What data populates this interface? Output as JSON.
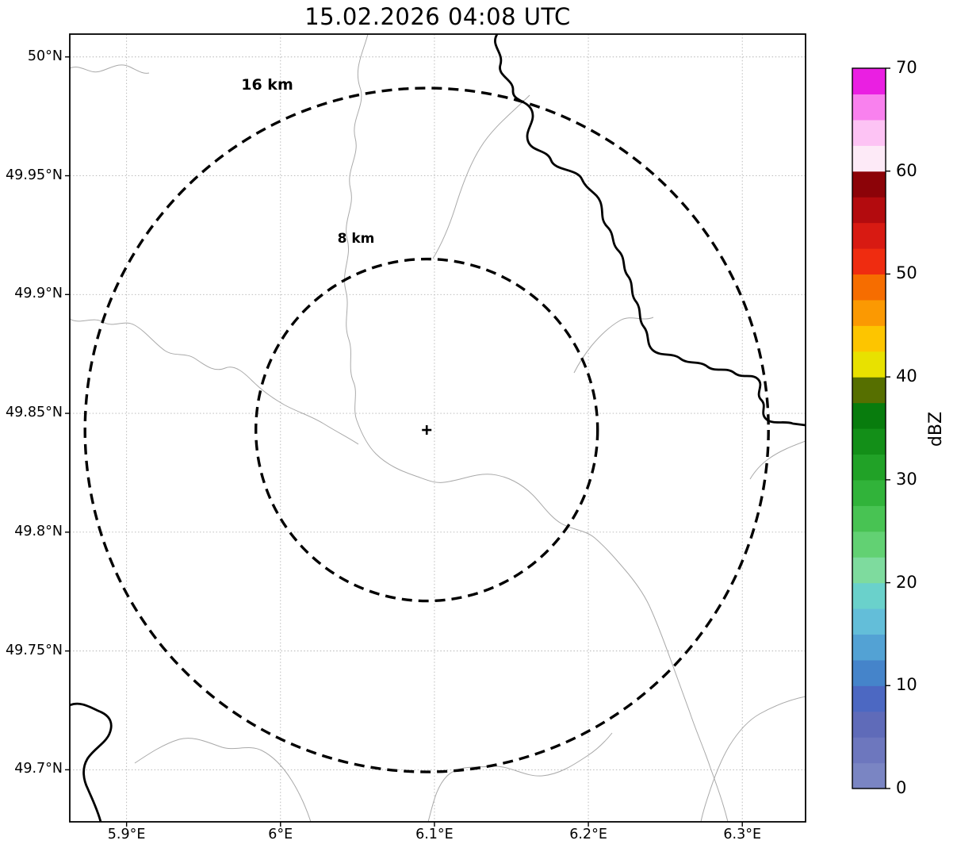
{
  "title": "15.02.2026 04:08 UTC",
  "colorbar": {
    "label": "dBZ",
    "min": 0,
    "max": 70,
    "ticks": [
      0,
      10,
      20,
      30,
      40,
      50,
      60,
      70
    ],
    "band_size_dbz": 2.5,
    "colors": [
      "#7a85c3",
      "#6d77be",
      "#5f6bb9",
      "#4c68c2",
      "#4584ca",
      "#53a2d4",
      "#63bed9",
      "#6ad1cb",
      "#7edb9e",
      "#62d173",
      "#48c353",
      "#31b33a",
      "#21a227",
      "#138f18",
      "#087c0d",
      "#56 6f00",
      "#e8e100",
      "#fdc500",
      "#fb9902",
      "#f66d00",
      "#ef2c10",
      "#d81a12",
      "#b30b0e",
      "#8c0308",
      "#fdeaf7",
      "#fdc3f4",
      "#f981ee",
      "#ea1fe2"
    ]
  },
  "axes": {
    "lon_range": [
      5.8631,
      6.3411
    ],
    "lat_range": [
      49.6781,
      50.0096
    ],
    "lon_ticks": [
      {
        "value": 5.9,
        "label": "5.9°E"
      },
      {
        "value": 6.0,
        "label": "6°E"
      },
      {
        "value": 6.1,
        "label": "6.1°E"
      },
      {
        "value": 6.2,
        "label": "6.2°E"
      },
      {
        "value": 6.3,
        "label": "6.3°E"
      }
    ],
    "lat_ticks": [
      {
        "value": 50.0,
        "label": "50°N"
      },
      {
        "value": 49.95,
        "label": "49.95°N"
      },
      {
        "value": 49.9,
        "label": "49.9°N"
      },
      {
        "value": 49.85,
        "label": "49.85°N"
      },
      {
        "value": 49.8,
        "label": "49.8°N"
      },
      {
        "value": 49.75,
        "label": "49.75°N"
      },
      {
        "value": 49.7,
        "label": "49.7°N"
      }
    ]
  },
  "range_rings": [
    {
      "label": "16 km",
      "radius_km": 16
    },
    {
      "label": "8 km",
      "radius_km": 8
    }
  ],
  "radar_site": {
    "lon": 6.095,
    "lat": 49.843,
    "marker": "+"
  },
  "chart_data": {
    "type": "heatmap",
    "title": "15.02.2026 04:08 UTC",
    "description": "Weather radar reflectivity map with two dashed range rings (8 km and 16 km) centered on the radar site; no reflectivity echoes are visible on the map at this time.",
    "colorbar_label": "dBZ",
    "colorbar_range": [
      0,
      70
    ],
    "colorbar_ticks": [
      0,
      10,
      20,
      30,
      40,
      50,
      60,
      70
    ],
    "x_axis": {
      "label": "",
      "tick_labels": [
        "5.9°E",
        "6°E",
        "6.1°E",
        "6.2°E",
        "6.3°E"
      ],
      "range": [
        5.8631,
        6.3411
      ]
    },
    "y_axis": {
      "label": "",
      "tick_labels": [
        "49.7°N",
        "49.75°N",
        "49.8°N",
        "49.85°N",
        "49.9°N",
        "49.95°N",
        "50°N"
      ],
      "range": [
        49.6781,
        50.0096
      ]
    },
    "grid": true,
    "range_rings_km": [
      8,
      16
    ],
    "radar_center": {
      "lon": 6.095,
      "lat": 49.843
    },
    "reflectivity_echoes": "none visible"
  }
}
